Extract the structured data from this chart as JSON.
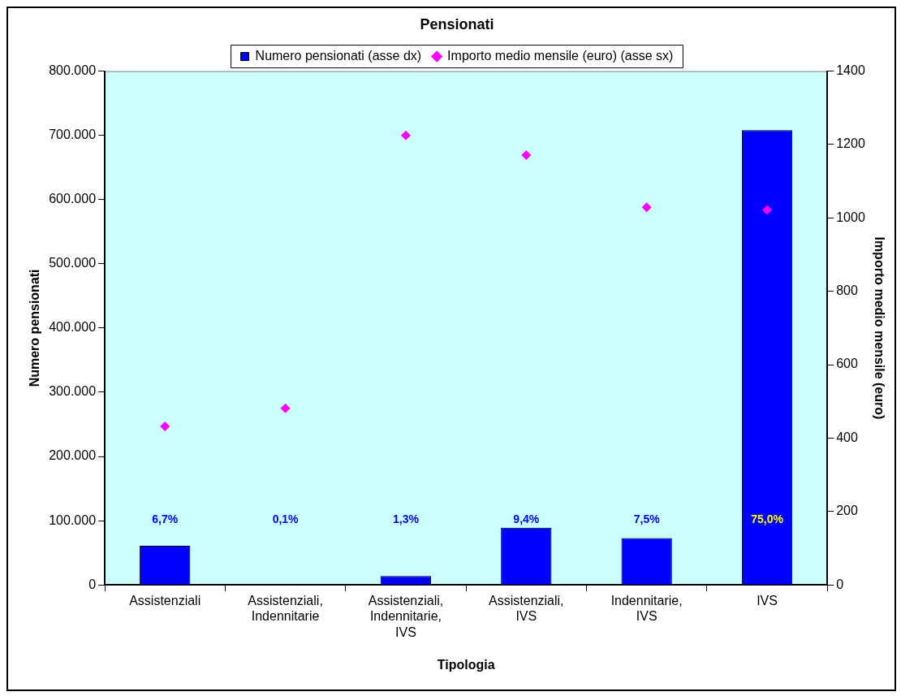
{
  "chart_data": {
    "type": "bar",
    "title": "Pensionati",
    "xlabel": "Tipologia",
    "ylabel": "Numero pensionati",
    "y2label": "Importo medio mensile (euro)",
    "categories": [
      "Assistenziali",
      "Assistenziali, Indennitarie",
      "Assistenziali, Indennitarie, IVS",
      "Assistenziali, IVS",
      "Indennitarie, IVS",
      "IVS"
    ],
    "series": [
      {
        "name": "Numero pensionati (asse dx)",
        "color": "#0000ff",
        "values": [
          61000,
          null,
          14000,
          89000,
          73000,
          708000
        ]
      },
      {
        "name": "Importo medio mensile (euro) (asse sx)",
        "type": "scatter",
        "axis": "y2",
        "color": "#ff00ff",
        "marker": "diamond",
        "values": [
          432,
          481,
          1225,
          1171,
          1029,
          1022
        ]
      }
    ],
    "ylim": [
      0,
      800000
    ],
    "yticks": [
      0,
      {
        "value": 100000,
        "label": "100.000"
      },
      {
        "value": 200000,
        "label": "200.000"
      },
      {
        "value": 300000,
        "label": "300.000"
      },
      {
        "value": 400000,
        "label": "400.000"
      },
      {
        "value": 500000,
        "label": "500.000"
      },
      {
        "value": 600000,
        "label": "600.000"
      },
      {
        "value": 700000,
        "label": "700.000"
      },
      {
        "value": 800000,
        "label": "800.000"
      }
    ],
    "y2lim": [
      0,
      1400
    ],
    "y2ticks": [
      0,
      200,
      400,
      600,
      800,
      1000,
      1200,
      1400
    ],
    "annotations": [
      "6,7%",
      "0,1%",
      "1,3%",
      "9,4%",
      "7,5%",
      "75,0%"
    ],
    "grid": false,
    "legend": "top"
  }
}
